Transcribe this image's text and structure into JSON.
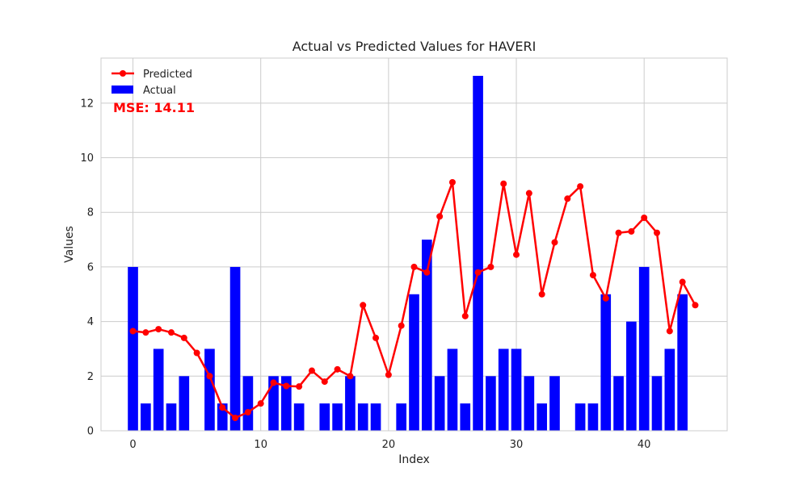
{
  "chart_data": {
    "type": "bar",
    "title": "Actual vs Predicted Values for HAVERI",
    "xlabel": "Index",
    "ylabel": "Values",
    "xlim": [
      -2.5,
      46.5
    ],
    "ylim": [
      0,
      13.65
    ],
    "xticks": [
      0,
      10,
      20,
      30,
      40
    ],
    "yticks": [
      0,
      2,
      4,
      6,
      8,
      10,
      12
    ],
    "grid": true,
    "legend_position": "top-left",
    "series": [
      {
        "name": "Predicted",
        "kind": "line",
        "color": "#ff0000",
        "values": [
          3.65,
          3.6,
          3.72,
          3.6,
          3.4,
          2.85,
          2.0,
          0.85,
          0.47,
          0.68,
          1.0,
          1.76,
          1.64,
          1.62,
          2.2,
          1.8,
          2.25,
          2.0,
          4.6,
          3.4,
          2.05,
          3.85,
          6.0,
          5.8,
          7.85,
          9.1,
          4.2,
          5.8,
          6.0,
          9.05,
          6.45,
          8.7,
          5.0,
          6.9,
          8.5,
          8.95,
          5.7,
          4.85,
          7.25,
          7.3,
          7.8,
          7.25,
          3.65,
          5.45,
          4.6
        ]
      },
      {
        "name": "Actual",
        "kind": "bar",
        "color": "#0000ff",
        "values": [
          6,
          1,
          3,
          1,
          2,
          0,
          3,
          1,
          6,
          2,
          0,
          2,
          2,
          1,
          0,
          1,
          1,
          2,
          1,
          1,
          0,
          1,
          5,
          7,
          2,
          3,
          1,
          13,
          2,
          3,
          3,
          2,
          1,
          2,
          0,
          1,
          1,
          5,
          2,
          4,
          6,
          2,
          3,
          5,
          0
        ]
      }
    ],
    "annotation": {
      "text": "MSE: 14.11",
      "color": "#ff0000"
    }
  }
}
